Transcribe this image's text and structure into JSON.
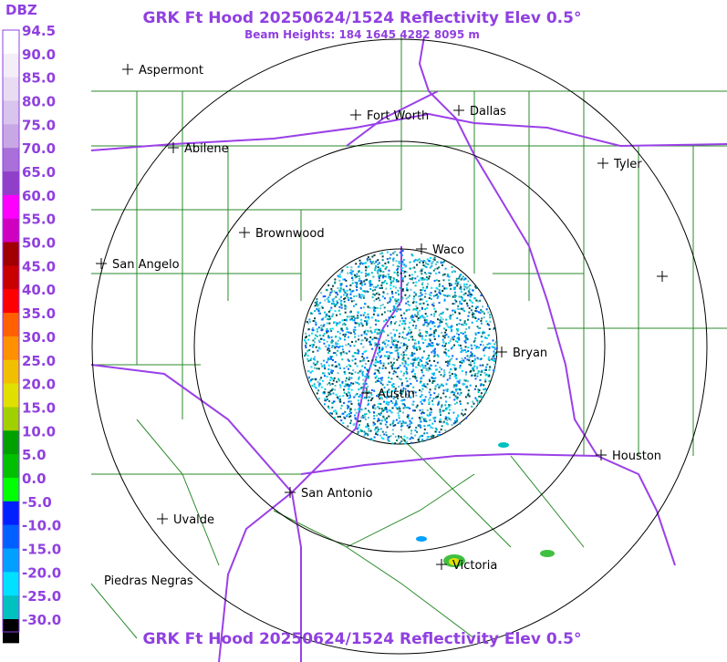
{
  "header": {
    "title": "GRK Ft Hood 20250624/1524 Reflectivity Elev 0.5°",
    "subtitle": "Beam Heights: 184 1645 4282 8095 m"
  },
  "footer": {
    "title": "GRK Ft Hood 20250624/1524 Reflectivity Elev 0.5°"
  },
  "legend": {
    "unit": "DBZ",
    "labels": [
      "94.5",
      "90.0",
      "85.0",
      "80.0",
      "75.0",
      "70.0",
      "65.0",
      "60.0",
      "55.0",
      "50.0",
      "45.0",
      "40.0",
      "35.0",
      "30.0",
      "25.0",
      "20.0",
      "15.0",
      "10.0",
      "5.0",
      "0.0",
      "-5.0",
      "-10.0",
      "-15.0",
      "-20.0",
      "-25.0",
      "-30.0"
    ],
    "colors": [
      "#ffffff",
      "#f4eef8",
      "#e8dcf2",
      "#d8c4ec",
      "#c8a8e4",
      "#a870d8",
      "#9040c8",
      "#ff00ff",
      "#d000c0",
      "#a00000",
      "#c80000",
      "#ff0000",
      "#ff6000",
      "#ff9000",
      "#f0c000",
      "#e0e000",
      "#a0d000",
      "#00a000",
      "#00c000",
      "#00ff00",
      "#0020ff",
      "#0060ff",
      "#00a0ff",
      "#00e0ff",
      "#00c0c0",
      "#000000"
    ]
  },
  "cities": [
    "Aspermont",
    "Fort Worth",
    "Dallas",
    "Abilene",
    "Tyler",
    "Brownwood",
    "Waco",
    "San Angelo",
    "Bryan",
    "Austin",
    "Houston",
    "San Antonio",
    "Uvalde",
    "Victoria",
    "Piedras Negras"
  ]
}
